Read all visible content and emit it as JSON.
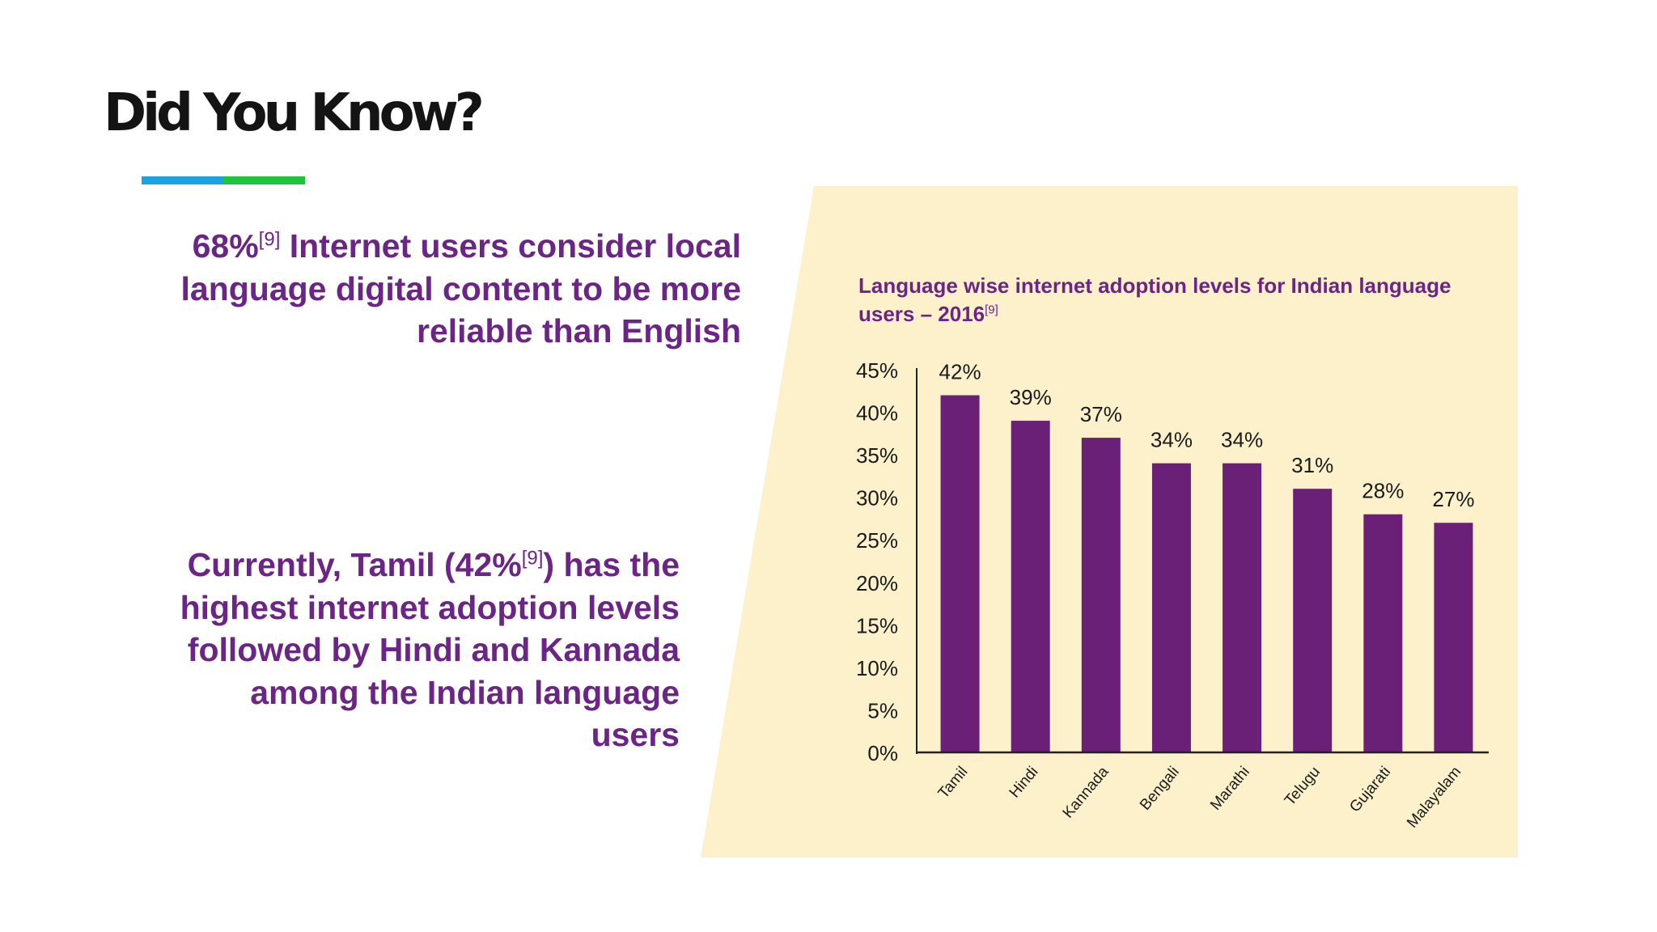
{
  "slide": {
    "title": "Did You Know?",
    "fact_1": {
      "prefix": "68%",
      "ref": "[9]",
      "rest": " Internet users consider local language digital content to be more reliable than English"
    },
    "fact_2": {
      "prefix": "Currently, Tamil (42%",
      "ref": "[9]",
      "rest": ") has the highest internet adoption levels followed by Hindi and Kannada among the Indian language users"
    }
  },
  "colors": {
    "text_purple": "#6b2585",
    "title": "#141414",
    "accent_blue": "#1aa3e0",
    "accent_green": "#1ec43b",
    "panel_bg": "#fdf1cb",
    "bar": "#6b2077",
    "axis": "#222222"
  },
  "chart_data": {
    "type": "bar",
    "title": "Language wise internet adoption levels for Indian language users – 2016",
    "title_ref": "[9]",
    "xlabel": "",
    "ylabel": "",
    "categories": [
      "Tamil",
      "Hindi",
      "Kannada",
      "Bengali",
      "Marathi",
      "Telugu",
      "Gujarati",
      "Malayalam"
    ],
    "values": [
      42,
      39,
      37,
      34,
      34,
      31,
      28,
      27
    ],
    "data_labels": [
      "42%",
      "39%",
      "37%",
      "34%",
      "34%",
      "31%",
      "28%",
      "27%"
    ],
    "ylim": [
      0,
      45
    ],
    "y_ticks": [
      0,
      5,
      10,
      15,
      20,
      25,
      30,
      35,
      40,
      45
    ],
    "y_tick_labels": [
      "0%",
      "5%",
      "10%",
      "15%",
      "20%",
      "25%",
      "30%",
      "35%",
      "40%",
      "45%"
    ],
    "grid": false,
    "legend": "none"
  }
}
